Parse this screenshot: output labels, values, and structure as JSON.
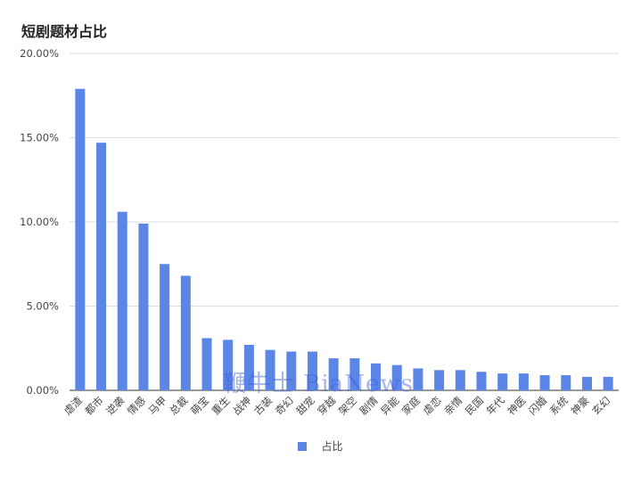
{
  "title": "短剧题材占比",
  "watermark": "鞭牛士 BiaNews",
  "colors": {
    "bar": "#5b86e5",
    "grid": "#dddddd",
    "axis": "#333333",
    "tick_text": "#444444"
  },
  "legend": {
    "label": "占比",
    "position": "bottom-center"
  },
  "chart_data": {
    "type": "bar",
    "title": "短剧题材占比",
    "ylim": [
      0,
      0.2
    ],
    "yticks": [
      "0.00%",
      "5.00%",
      "10.00%",
      "15.00%",
      "20.00%"
    ],
    "ytick_values": [
      0,
      0.05,
      0.1,
      0.15,
      0.2
    ],
    "grid": true,
    "categories": [
      "虐渣",
      "都市",
      "逆袭",
      "情感",
      "马甲",
      "总裁",
      "萌宝",
      "重生",
      "战神",
      "古装",
      "奇幻",
      "甜宠",
      "穿越",
      "架空",
      "剧情",
      "异能",
      "家庭",
      "虐恋",
      "亲情",
      "民国",
      "年代",
      "神医",
      "闪婚",
      "系统",
      "神豪",
      "玄幻"
    ],
    "series": [
      {
        "name": "占比",
        "values": [
          0.179,
          0.147,
          0.106,
          0.099,
          0.075,
          0.068,
          0.031,
          0.03,
          0.027,
          0.024,
          0.023,
          0.023,
          0.019,
          0.019,
          0.016,
          0.015,
          0.013,
          0.012,
          0.012,
          0.011,
          0.01,
          0.01,
          0.009,
          0.009,
          0.008,
          0.008
        ]
      }
    ]
  }
}
